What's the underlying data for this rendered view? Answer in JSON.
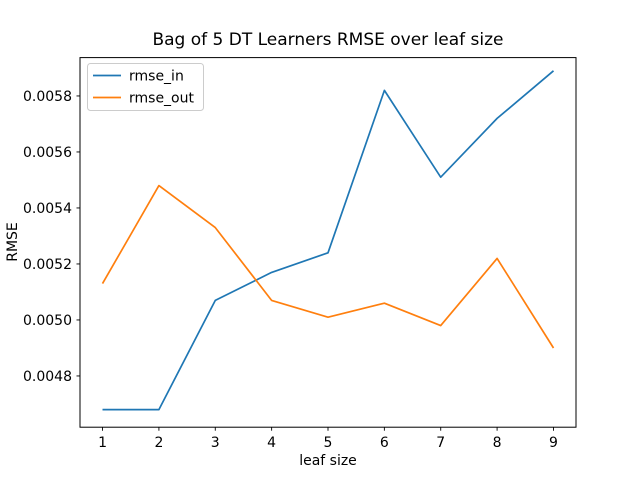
{
  "title": "Bag of 5 DT Learners RMSE over leaf size",
  "chart_data": {
    "type": "line",
    "x": [
      1,
      2,
      3,
      4,
      5,
      6,
      7,
      8,
      9
    ],
    "series": [
      {
        "name": "rmse_in",
        "color": "#1f77b4",
        "values": [
          0.00468,
          0.00468,
          0.00507,
          0.00517,
          0.00524,
          0.00582,
          0.00551,
          0.00572,
          0.00589
        ]
      },
      {
        "name": "rmse_out",
        "color": "#ff7f0e",
        "values": [
          0.00513,
          0.00548,
          0.00533,
          0.00507,
          0.00501,
          0.00506,
          0.00498,
          0.00522,
          0.0049
        ]
      }
    ],
    "xlabel": "leaf size",
    "ylabel": "RMSE",
    "xlim": [
      0.6,
      9.4
    ],
    "ylim": [
      0.004617,
      0.005937
    ],
    "xticks": [
      1,
      2,
      3,
      4,
      5,
      6,
      7,
      8,
      9
    ],
    "xtick_labels": [
      "1",
      "2",
      "3",
      "4",
      "5",
      "6",
      "7",
      "8",
      "9"
    ],
    "yticks": [
      0.0048,
      0.005,
      0.0052,
      0.0054,
      0.0056,
      0.0058
    ],
    "ytick_labels": [
      "0.0048",
      "0.0050",
      "0.0052",
      "0.0054",
      "0.0056",
      "0.0058"
    ],
    "grid": false,
    "legend_position": "upper left"
  },
  "legend": {
    "items": [
      {
        "label": "rmse_in"
      },
      {
        "label": "rmse_out"
      }
    ]
  },
  "colors": {
    "background": "#ffffff",
    "spine": "#000000",
    "tick": "#000000",
    "text": "#000000",
    "legend_border": "#cccccc",
    "legend_fill": "#ffffff"
  }
}
